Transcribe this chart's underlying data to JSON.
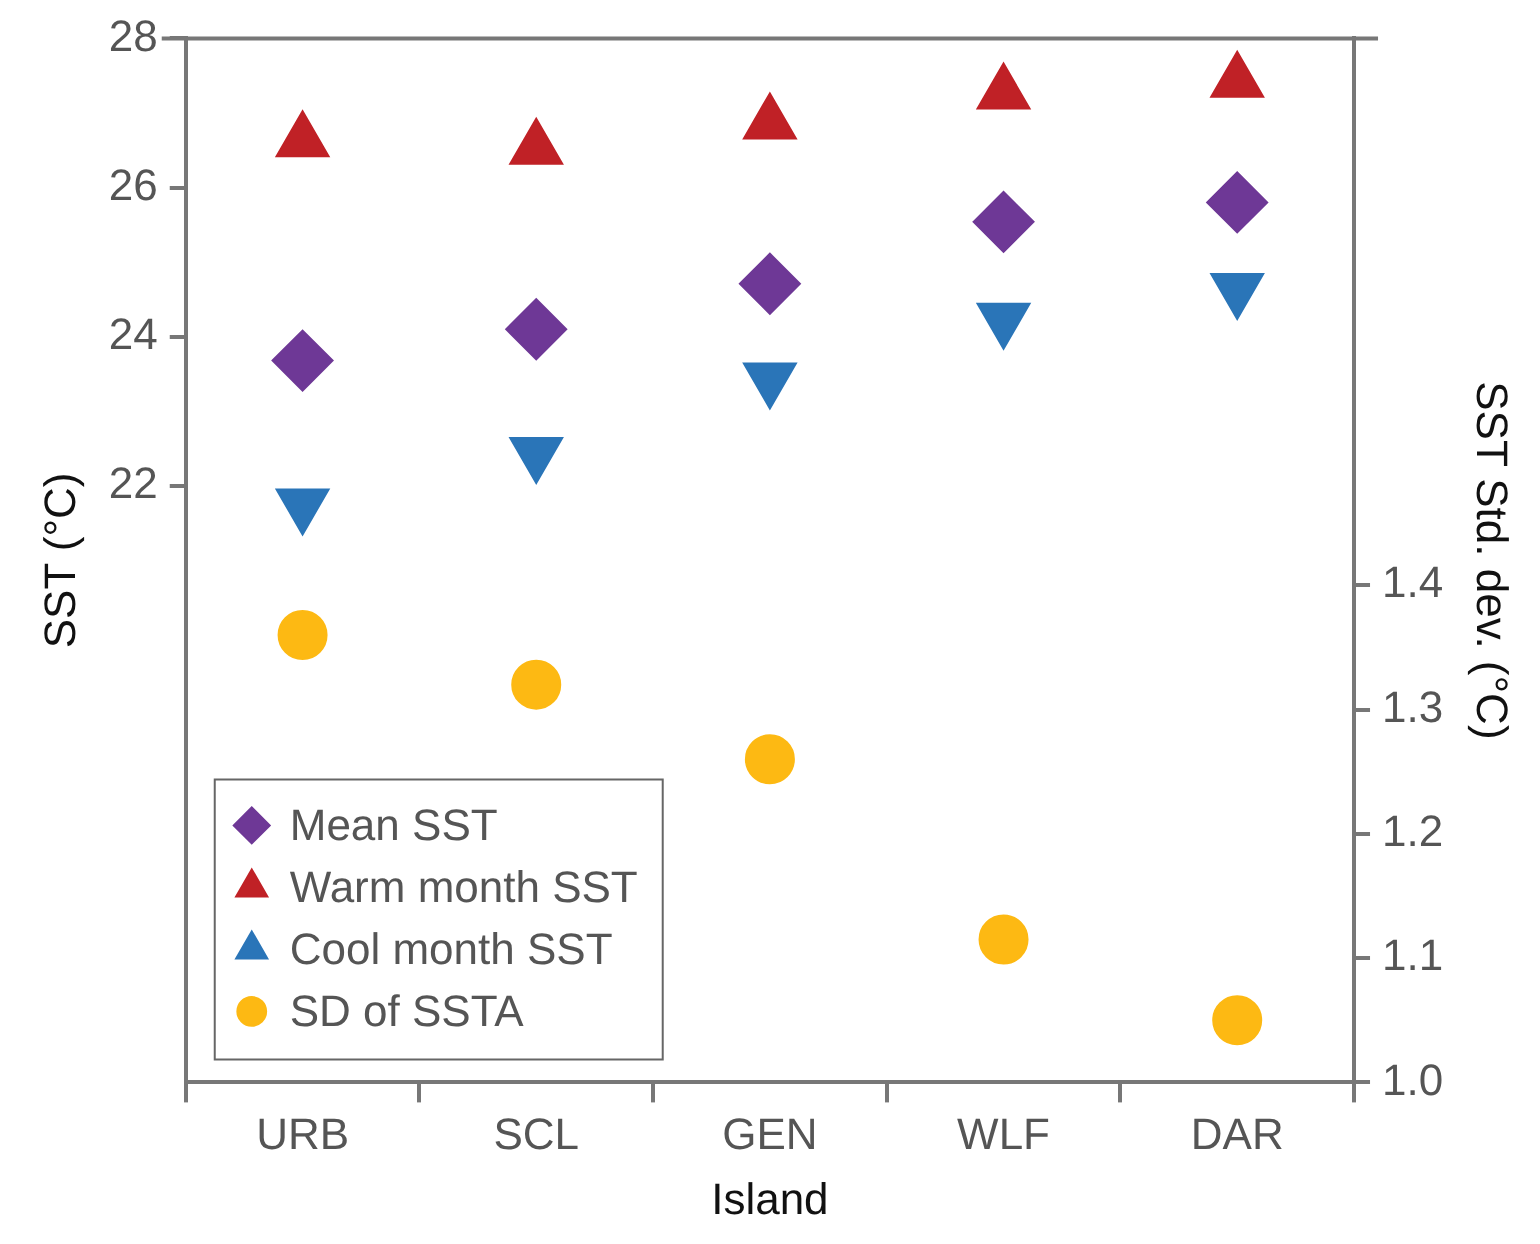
{
  "chart_data": {
    "type": "scatter",
    "xlabel": "Island",
    "ylabel": "SST (°C)",
    "y2label": "SST Std. dev. (°C)",
    "categories": [
      "URB",
      "SCL",
      "GEN",
      "WLF",
      "DAR"
    ],
    "series": [
      {
        "name": "Mean SST",
        "color": "#6e3896",
        "marker": "diamond",
        "values": [
          23.68,
          24.1,
          24.71,
          25.54,
          25.8
        ]
      },
      {
        "name": "Warm month SST",
        "color": "#c02126",
        "marker": "triangle",
        "values": [
          26.62,
          26.52,
          26.86,
          27.26,
          27.42
        ]
      },
      {
        "name": "Cool month SST",
        "color": "#2a75b8",
        "marker": "triangle-down",
        "values": [
          21.75,
          22.44,
          23.44,
          24.24,
          24.64
        ]
      },
      {
        "name": "SD of SSTA",
        "color": "#fdb913",
        "marker": "circle",
        "axis": "y2",
        "values": [
          1.36,
          1.32,
          1.26,
          1.115,
          1.05
        ]
      }
    ],
    "ylim": [
      14,
      28
    ],
    "yticks": [
      22,
      24,
      26,
      28
    ],
    "y2lim": [
      1.0,
      1.84
    ],
    "y2ticks": [
      {
        "value": 1,
        "label": "1.0"
      },
      1.1,
      1.2,
      1.3,
      1.4
    ],
    "grid": false,
    "legend": "bottom left"
  }
}
